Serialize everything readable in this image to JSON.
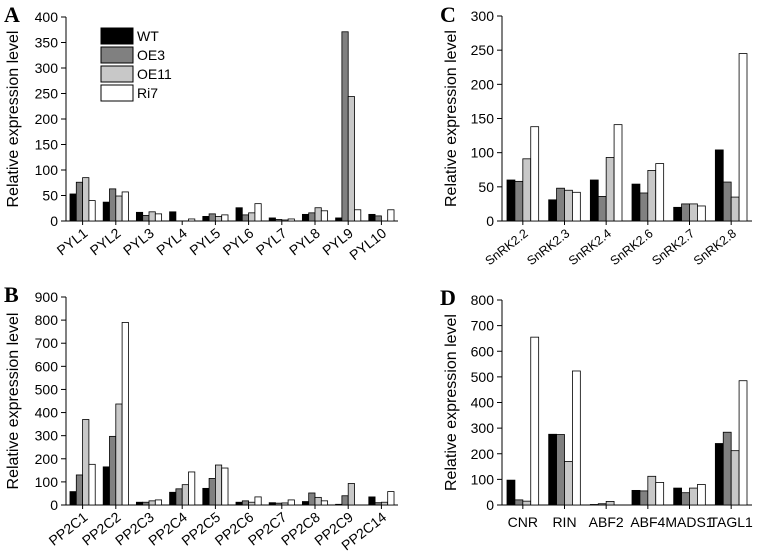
{
  "colors": {
    "WT": "#000000",
    "OE3": "#808080",
    "OE11": "#c8c8c8",
    "Ri7": "#ffffff"
  },
  "legend": [
    "WT",
    "OE3",
    "OE11",
    "Ri7"
  ],
  "chart_data": [
    {
      "type": "bar",
      "panel": "A",
      "ylabel": "Relative expression level",
      "ylim": [
        0,
        400
      ],
      "yticks": [
        0,
        50,
        100,
        150,
        200,
        250,
        300,
        350,
        400
      ],
      "categories": [
        "PYL1",
        "PYL2",
        "PYL3",
        "PYL4",
        "PYL5",
        "PYL6",
        "PYL7",
        "PYL8",
        "PYL9",
        "PYL10"
      ],
      "series": [
        {
          "name": "WT",
          "values": [
            53,
            37,
            17,
            18,
            9,
            26,
            6,
            13,
            6,
            13
          ]
        },
        {
          "name": "OE3",
          "values": [
            76,
            63,
            11,
            0,
            14,
            12,
            3,
            16,
            371,
            10
          ]
        },
        {
          "name": "OE11",
          "values": [
            85,
            49,
            18,
            0,
            9,
            16,
            2,
            26,
            244,
            0
          ]
        },
        {
          "name": "Ri7",
          "values": [
            40,
            57,
            14,
            4,
            12,
            34,
            4,
            20,
            22,
            22
          ]
        }
      ]
    },
    {
      "type": "bar",
      "panel": "B",
      "ylabel": "Relative expression level",
      "ylim": [
        0,
        900
      ],
      "yticks": [
        0,
        100,
        200,
        300,
        400,
        500,
        600,
        700,
        800,
        900
      ],
      "categories": [
        "PP2C1",
        "PP2C2",
        "PP2C3",
        "PP2C4",
        "PP2C5",
        "PP2C6",
        "PP2C7",
        "PP2C8",
        "PP2C9",
        "PP2C14"
      ],
      "series": [
        {
          "name": "WT",
          "values": [
            58,
            165,
            12,
            55,
            72,
            12,
            10,
            15,
            3,
            35
          ]
        },
        {
          "name": "OE3",
          "values": [
            130,
            297,
            12,
            70,
            115,
            18,
            8,
            52,
            40,
            10
          ]
        },
        {
          "name": "OE11",
          "values": [
            370,
            437,
            18,
            88,
            173,
            12,
            9,
            33,
            93,
            12
          ]
        },
        {
          "name": "Ri7",
          "values": [
            176,
            790,
            22,
            143,
            160,
            35,
            22,
            18,
            0,
            58
          ]
        }
      ]
    },
    {
      "type": "bar",
      "panel": "C",
      "ylabel": "Relative expression level",
      "ylim": [
        0,
        300
      ],
      "yticks": [
        0,
        50,
        100,
        150,
        200,
        250,
        300
      ],
      "categories": [
        "SnRK2.2",
        "SnRK2.3",
        "SnRK2.4",
        "SnRK2.6",
        "SnRK2.7",
        "SnRK2.8"
      ],
      "series": [
        {
          "name": "WT",
          "values": [
            60,
            31,
            60,
            54,
            20,
            104
          ]
        },
        {
          "name": "OE3",
          "values": [
            58,
            48,
            36,
            41,
            25,
            57
          ]
        },
        {
          "name": "OE11",
          "values": [
            91,
            45,
            93,
            74,
            25,
            35
          ]
        },
        {
          "name": "Ri7",
          "values": [
            138,
            42,
            141,
            84,
            22,
            245
          ]
        }
      ]
    },
    {
      "type": "bar",
      "panel": "D",
      "ylabel": "Relative expression level",
      "ylim": [
        0,
        800
      ],
      "yticks": [
        0,
        100,
        200,
        300,
        400,
        500,
        600,
        700,
        800
      ],
      "categories": [
        "CNR",
        "RIN",
        "ABF2",
        "ABF4",
        "MADS1",
        "TAGL1"
      ],
      "series": [
        {
          "name": "WT",
          "values": [
            97,
            276,
            2,
            57,
            66,
            240
          ]
        },
        {
          "name": "OE3",
          "values": [
            20,
            275,
            5,
            55,
            48,
            284
          ]
        },
        {
          "name": "OE11",
          "values": [
            15,
            170,
            14,
            112,
            66,
            212
          ]
        },
        {
          "name": "Ri7",
          "values": [
            655,
            523,
            0,
            88,
            80,
            485
          ]
        }
      ]
    }
  ]
}
